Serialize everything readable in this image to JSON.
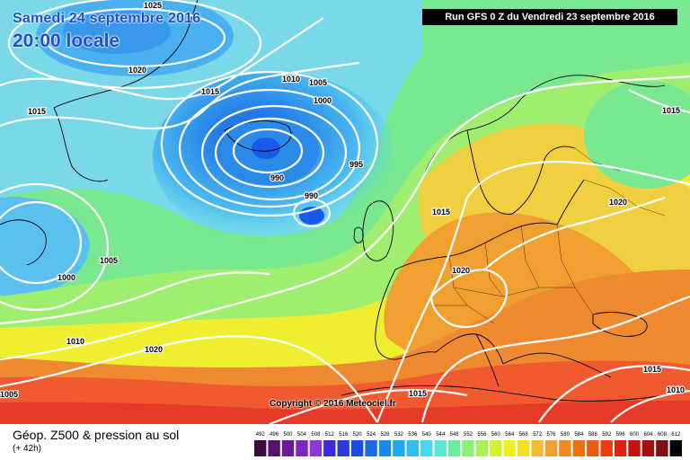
{
  "map": {
    "date_label": "Samedi 24 septembre 2016",
    "time_label": "20:00 locale",
    "run_label": "Run GFS 0 Z du Vendredi 23 septembre 2016",
    "copyright": "Copyright © 2016 Meteociel.fr",
    "isobar_labels": [
      "1025",
      "1020",
      "1015",
      "1015",
      "1010",
      "1005",
      "1000",
      "995",
      "990",
      "990",
      "1015",
      "1020",
      "1015",
      "1005",
      "1000",
      "1010",
      "1020",
      "1015",
      "1015",
      "1010",
      "1005",
      "1020"
    ]
  },
  "legend": {
    "title": "Géop. Z500 & pression au sol",
    "subtitle": "(+ 42h)",
    "scale_values": [
      "492",
      "496",
      "500",
      "504",
      "508",
      "512",
      "516",
      "520",
      "524",
      "528",
      "532",
      "536",
      "540",
      "544",
      "548",
      "552",
      "556",
      "560",
      "564",
      "568",
      "572",
      "576",
      "580",
      "584",
      "588",
      "592",
      "596",
      "600",
      "604",
      "608",
      "612"
    ],
    "scale_colors": [
      "#3a0a3a",
      "#5a1070",
      "#6a1a9a",
      "#7a28c0",
      "#8a3ad8",
      "#3a2ad8",
      "#2a3ae0",
      "#1a4ae8",
      "#1a6ae8",
      "#1a8ae8",
      "#1aaaf0",
      "#2ac0f0",
      "#4ad8f0",
      "#5ae8d0",
      "#6aee9a",
      "#8af07a",
      "#aaf050",
      "#d0f030",
      "#f0f020",
      "#f0e020",
      "#f0c030",
      "#f0a030",
      "#f08a20",
      "#f07010",
      "#f05a10",
      "#f03a10",
      "#e02010",
      "#c81010",
      "#a81010",
      "#801010",
      "#000000"
    ]
  }
}
